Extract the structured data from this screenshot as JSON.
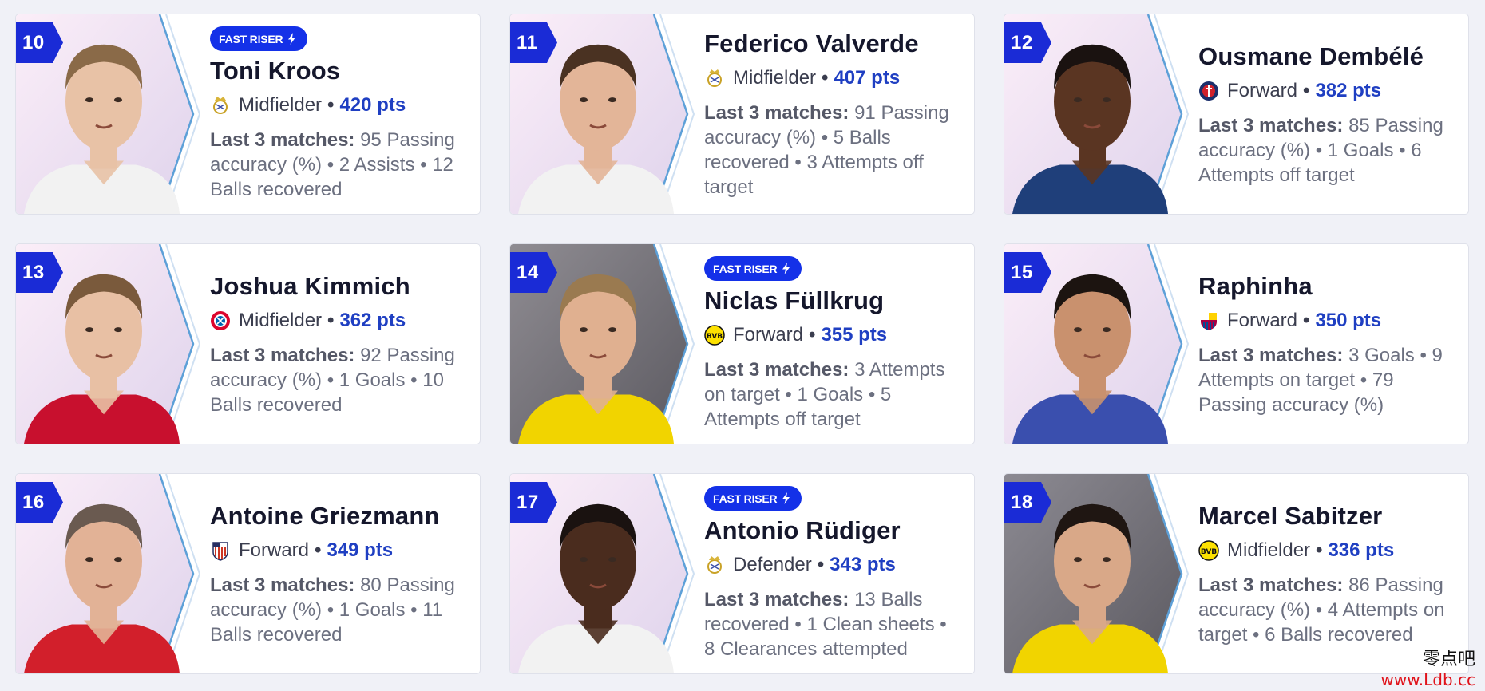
{
  "players": [
    {
      "rank": "10",
      "name": "Toni Kroos",
      "fast_riser": true,
      "club": "real-madrid",
      "position": "Midfielder",
      "pts": "420 pts",
      "stats_label": "Last 3 matches:",
      "stats": "95 Passing accuracy (%) • 2 Assists • 12 Balls recovered",
      "skin": "#e8c2a6",
      "hair": "#8a6a48",
      "shirt": "#f2f2f2",
      "bg": "#f3e9f5"
    },
    {
      "rank": "11",
      "name": "Federico Valverde",
      "fast_riser": false,
      "club": "real-madrid",
      "position": "Midfielder",
      "pts": "407 pts",
      "stats_label": "Last 3 matches:",
      "stats": "91 Passing accuracy (%) • 5 Balls recovered • 3 Attempts off target",
      "skin": "#e3b598",
      "hair": "#4a3222",
      "shirt": "#f2f2f2",
      "bg": "#f3e9f5"
    },
    {
      "rank": "12",
      "name": "Ousmane Dembélé",
      "fast_riser": false,
      "club": "psg",
      "position": "Forward",
      "pts": "382 pts",
      "stats_label": "Last 3 matches:",
      "stats": "85 Passing accuracy (%) • 1 Goals • 6 Attempts off target",
      "skin": "#5a3522",
      "hair": "#1a1210",
      "shirt": "#1f3f7a",
      "bg": "#f3e9f5"
    },
    {
      "rank": "13",
      "name": "Joshua Kimmich",
      "fast_riser": false,
      "club": "bayern",
      "position": "Midfielder",
      "pts": "362 pts",
      "stats_label": "Last 3 matches:",
      "stats": "92 Passing accuracy (%) • 1 Goals • 10 Balls recovered",
      "skin": "#e8c0a4",
      "hair": "#7a5a3c",
      "shirt": "#c8102e",
      "bg": "#f3e9f5"
    },
    {
      "rank": "14",
      "name": "Niclas Füllkrug",
      "fast_riser": true,
      "club": "dortmund",
      "position": "Forward",
      "pts": "355 pts",
      "stats_label": "Last 3 matches:",
      "stats": "3 Attempts on target • 1 Goals • 5 Attempts off target",
      "skin": "#e0b090",
      "hair": "#9a7a50",
      "shirt": "#f1d400",
      "bg": "#8f8c92"
    },
    {
      "rank": "15",
      "name": "Raphinha",
      "fast_riser": false,
      "club": "barcelona",
      "position": "Forward",
      "pts": "350 pts",
      "stats_label": "Last 3 matches:",
      "stats": "3 Goals • 9 Attempts on target • 79 Passing accuracy (%)",
      "skin": "#c9916e",
      "hair": "#1c1410",
      "shirt": "#3a4fae",
      "bg": "#f3e9f5"
    },
    {
      "rank": "16",
      "name": "Antoine Griezmann",
      "fast_riser": false,
      "club": "atletico",
      "position": "Forward",
      "pts": "349 pts",
      "stats_label": "Last 3 matches:",
      "stats": "80 Passing accuracy (%) • 1 Goals • 11 Balls recovered",
      "skin": "#e2b296",
      "hair": "#6a5a50",
      "shirt": "#d21f2b",
      "bg": "#f3e9f5"
    },
    {
      "rank": "17",
      "name": "Antonio Rüdiger",
      "fast_riser": true,
      "club": "real-madrid",
      "position": "Defender",
      "pts": "343 pts",
      "stats_label": "Last 3 matches:",
      "stats": "13 Balls recovered • 1 Clean sheets • 8 Clearances attempted",
      "skin": "#4a2c1e",
      "hair": "#1a1210",
      "shirt": "#f2f2f2",
      "bg": "#f3e9f5"
    },
    {
      "rank": "18",
      "name": "Marcel Sabitzer",
      "fast_riser": false,
      "club": "dortmund",
      "position": "Midfielder",
      "pts": "336 pts",
      "stats_label": "Last 3 matches:",
      "stats": "86 Passing accuracy (%) • 4 Attempts on target • 6 Balls recovered",
      "skin": "#d9a888",
      "hair": "#1f1612",
      "shirt": "#f1d400",
      "bg": "#8c8a92"
    }
  ],
  "fast_riser_label": "FAST RISER",
  "accent": "#1431e8",
  "rank_color": "#1a2bd6",
  "points_color": "#1f3fc2",
  "watermark": {
    "cn": "零点吧",
    "url": "www.Ldb.cc"
  }
}
